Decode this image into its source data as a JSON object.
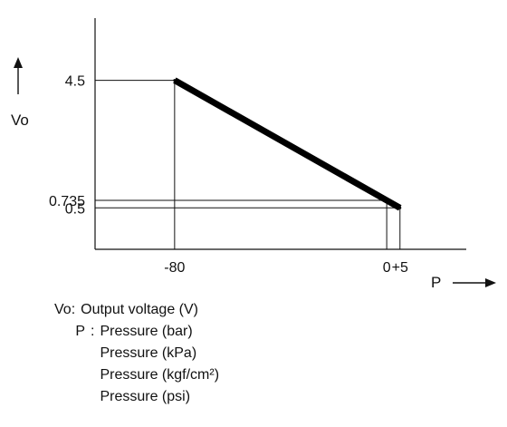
{
  "chart_data": {
    "type": "line",
    "x_axis_label": "P",
    "y_axis_label": "Vo",
    "x_ticks": [
      "-80",
      "0",
      "+5"
    ],
    "y_ticks": [
      "4.5",
      "0.735",
      "0.5"
    ],
    "series": [
      {
        "points": [
          {
            "x": -80,
            "y": 4.5
          },
          {
            "x": 0,
            "y": 0.735
          },
          {
            "x": 5,
            "y": 0.5
          }
        ]
      }
    ],
    "xlim": [
      -110,
      30
    ],
    "ylim": [
      -0.8,
      6.45
    ],
    "grid": "reference lines at labeled values",
    "line_color": "#000000"
  },
  "legend": {
    "vo_label": "Vo",
    "vo_separator": ":",
    "vo_text": "Output voltage (V)",
    "p_label": "P",
    "p_separator": ":",
    "p_items": [
      "Pressure (bar)",
      "Pressure (kPa)",
      "Pressure (kgf/cm²)",
      "Pressure (psi)"
    ]
  }
}
